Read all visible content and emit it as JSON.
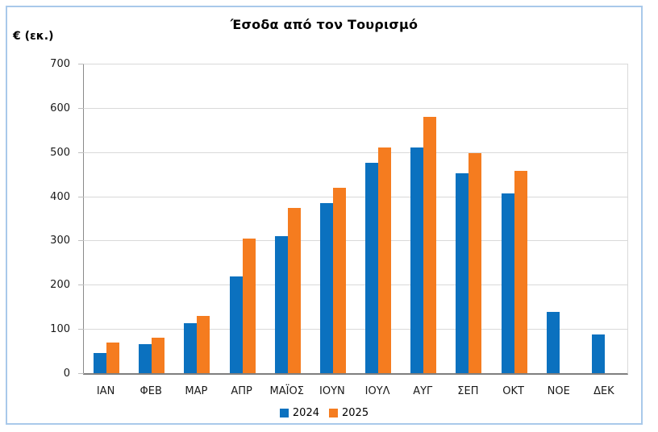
{
  "chart_data": {
    "type": "bar",
    "title": "Έσοδα από τον Τουρισμό",
    "ylabel": "€ (εκ.)",
    "xlabel": "",
    "categories": [
      "ΙΑΝ",
      "ΦΕΒ",
      "ΜΑΡ",
      "ΑΠΡ",
      "ΜΑΪΟΣ",
      "ΙΟΥΝ",
      "ΙΟΥΛ",
      "ΑΥΓ",
      "ΣΕΠ",
      "ΟΚΤ",
      "ΝΟΕ",
      "ΔΕΚ"
    ],
    "series": [
      {
        "name": "2024",
        "color": "#0b71bf",
        "values": [
          45,
          65,
          113,
          218,
          310,
          385,
          475,
          510,
          453,
          407,
          138,
          87
        ]
      },
      {
        "name": "2025",
        "color": "#f57c1f",
        "values": [
          70,
          80,
          130,
          305,
          373,
          420,
          510,
          580,
          498,
          458,
          null,
          null
        ]
      }
    ],
    "ylim": [
      0,
      700
    ],
    "ytick_step": 100,
    "grid": "horizontal",
    "grid_color": "#d9d9d9",
    "axis_color": "#8a8a8a",
    "legend_position": "bottom-center"
  },
  "frame": {
    "border_color": "#a9c9ea",
    "background": "#ffffff"
  }
}
